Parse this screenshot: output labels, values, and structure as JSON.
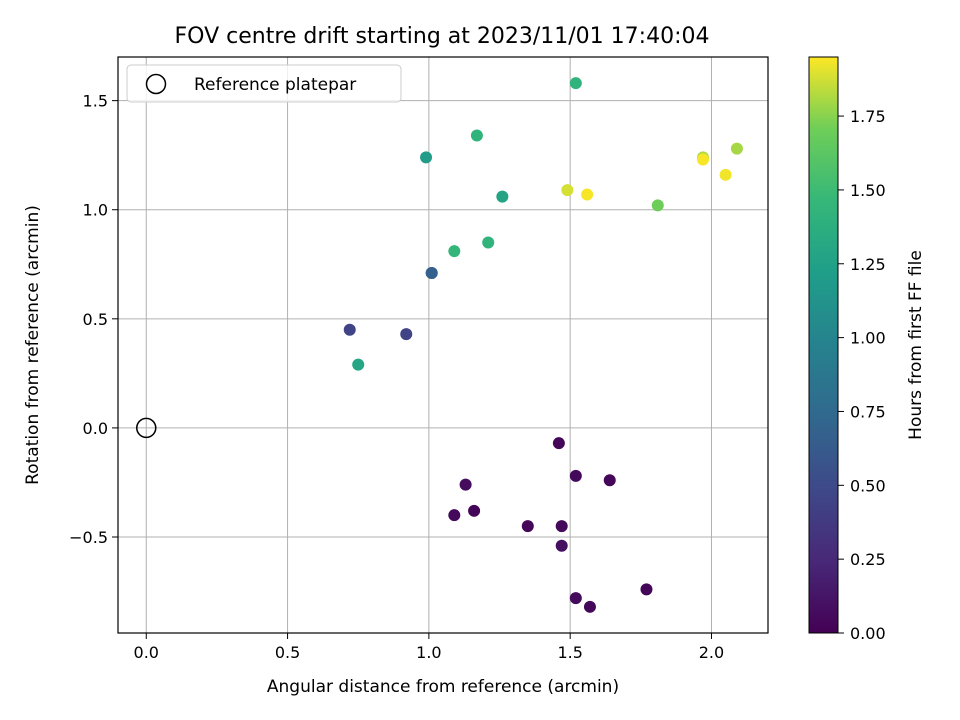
{
  "chart_data": {
    "type": "scatter",
    "title": "FOV centre drift starting at 2023/11/01 17:40:04",
    "xlabel": "Angular distance from reference (arcmin)",
    "ylabel": "Rotation from reference (arcmin)",
    "xlim": [
      -0.1,
      2.2
    ],
    "ylim": [
      -0.94,
      1.7
    ],
    "x_ticks": [
      0.0,
      0.5,
      1.0,
      1.5,
      2.0
    ],
    "x_tick_labels": [
      "0.0",
      "0.5",
      "1.0",
      "1.5",
      "2.0"
    ],
    "y_ticks": [
      -0.5,
      0.0,
      0.5,
      1.0,
      1.5
    ],
    "y_tick_labels": [
      "−0.5",
      "0.0",
      "0.5",
      "1.0",
      "1.5"
    ],
    "grid": true,
    "legend": {
      "placement": "top-left",
      "entries": [
        {
          "label": "Reference platepar",
          "marker": "open-circle",
          "color": "#000000"
        }
      ]
    },
    "reference_point": {
      "x": 0.0,
      "y": 0.0
    },
    "colorbar": {
      "label": "Hours from first FF file",
      "colormap": "viridis",
      "range": [
        0.0,
        1.95
      ],
      "ticks": [
        0.0,
        0.25,
        0.5,
        0.75,
        1.0,
        1.25,
        1.5,
        1.75
      ],
      "tick_labels": [
        "0.00",
        "0.25",
        "0.50",
        "0.75",
        "1.00",
        "1.25",
        "1.50",
        "1.75"
      ]
    },
    "points": [
      {
        "x": 1.46,
        "y": -0.07,
        "c": 0.03
      },
      {
        "x": 1.52,
        "y": -0.22,
        "c": 0.05
      },
      {
        "x": 1.64,
        "y": -0.24,
        "c": 0.04
      },
      {
        "x": 1.13,
        "y": -0.26,
        "c": 0.06
      },
      {
        "x": 1.16,
        "y": -0.38,
        "c": 0.02
      },
      {
        "x": 1.09,
        "y": -0.4,
        "c": 0.05
      },
      {
        "x": 1.35,
        "y": -0.45,
        "c": 0.04
      },
      {
        "x": 1.47,
        "y": -0.45,
        "c": 0.05
      },
      {
        "x": 1.47,
        "y": -0.54,
        "c": 0.08
      },
      {
        "x": 1.77,
        "y": -0.74,
        "c": 0.03
      },
      {
        "x": 1.52,
        "y": -0.78,
        "c": 0.06
      },
      {
        "x": 1.57,
        "y": -0.82,
        "c": 0.04
      },
      {
        "x": 0.72,
        "y": 0.45,
        "c": 0.45
      },
      {
        "x": 0.92,
        "y": 0.43,
        "c": 0.45
      },
      {
        "x": 1.01,
        "y": 0.71,
        "c": 0.6
      },
      {
        "x": 1.01,
        "y": 0.71,
        "c": 0.68
      },
      {
        "x": 0.75,
        "y": 0.29,
        "c": 1.3
      },
      {
        "x": 0.99,
        "y": 1.24,
        "c": 1.2
      },
      {
        "x": 1.26,
        "y": 1.06,
        "c": 1.28
      },
      {
        "x": 1.21,
        "y": 0.85,
        "c": 1.42
      },
      {
        "x": 1.09,
        "y": 0.81,
        "c": 1.45
      },
      {
        "x": 1.17,
        "y": 1.34,
        "c": 1.42
      },
      {
        "x": 1.52,
        "y": 1.58,
        "c": 1.42
      },
      {
        "x": 1.49,
        "y": 1.09,
        "c": 1.88
      },
      {
        "x": 1.56,
        "y": 1.07,
        "c": 1.94
      },
      {
        "x": 1.81,
        "y": 1.02,
        "c": 1.7
      },
      {
        "x": 1.97,
        "y": 1.24,
        "c": 1.82
      },
      {
        "x": 1.97,
        "y": 1.23,
        "c": 1.94
      },
      {
        "x": 2.05,
        "y": 1.16,
        "c": 1.93
      },
      {
        "x": 2.09,
        "y": 1.28,
        "c": 1.8
      }
    ]
  }
}
